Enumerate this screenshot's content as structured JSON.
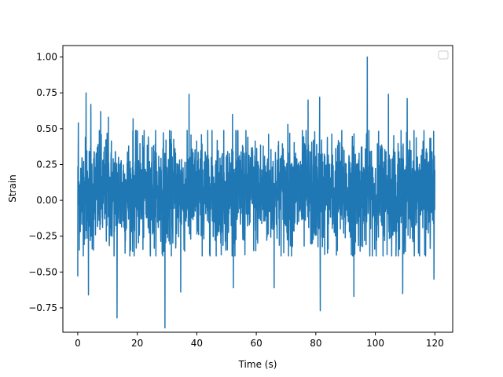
{
  "chart_data": {
    "type": "line",
    "xlabel": "Time (s)",
    "ylabel": "Strain",
    "xlim": [
      -5,
      126
    ],
    "ylim": [
      -0.92,
      1.08
    ],
    "xticks": [
      0,
      20,
      40,
      60,
      80,
      100,
      120
    ],
    "yticks": [
      -0.75,
      -0.5,
      -0.25,
      0.0,
      0.25,
      0.5,
      0.75,
      1.0
    ],
    "xtick_labels": [
      "0",
      "20",
      "40",
      "60",
      "80",
      "100",
      "120"
    ],
    "ytick_labels": [
      "−0.75",
      "−0.50",
      "−0.25",
      "0.00",
      "0.25",
      "0.50",
      "0.75",
      "1.00"
    ],
    "legend": {
      "placement": "top-right",
      "entries": []
    },
    "grid": false,
    "series": [
      {
        "color": "#1f77b4",
        "x_start": 0,
        "x_end": 120,
        "num_points": 2400,
        "typical_band": [
          -0.3,
          0.4
        ],
        "peaks": [
          {
            "x": 0.2,
            "y": 0.54
          },
          {
            "x": 2.8,
            "y": 0.75
          },
          {
            "x": 4.4,
            "y": 0.67
          },
          {
            "x": 7.7,
            "y": 0.62
          },
          {
            "x": 10.3,
            "y": 0.58
          },
          {
            "x": 13.2,
            "y": 0.76
          },
          {
            "x": 18.6,
            "y": 0.57
          },
          {
            "x": 29.3,
            "y": 0.69
          },
          {
            "x": 37.4,
            "y": 0.74
          },
          {
            "x": 52.0,
            "y": 0.6
          },
          {
            "x": 70.6,
            "y": 0.53
          },
          {
            "x": 77.4,
            "y": 0.7
          },
          {
            "x": 81.3,
            "y": 0.72
          },
          {
            "x": 97.3,
            "y": 1.0
          },
          {
            "x": 104.4,
            "y": 0.74
          },
          {
            "x": 110.7,
            "y": 0.71
          }
        ],
        "troughs": [
          {
            "x": 0.0,
            "y": -0.53
          },
          {
            "x": 3.6,
            "y": -0.66
          },
          {
            "x": 13.2,
            "y": -0.82
          },
          {
            "x": 29.3,
            "y": -0.89
          },
          {
            "x": 34.6,
            "y": -0.64
          },
          {
            "x": 52.3,
            "y": -0.61
          },
          {
            "x": 66.0,
            "y": -0.61
          },
          {
            "x": 81.5,
            "y": -0.77
          },
          {
            "x": 92.8,
            "y": -0.67
          },
          {
            "x": 109.2,
            "y": -0.65
          },
          {
            "x": 119.7,
            "y": -0.55
          }
        ]
      }
    ]
  }
}
